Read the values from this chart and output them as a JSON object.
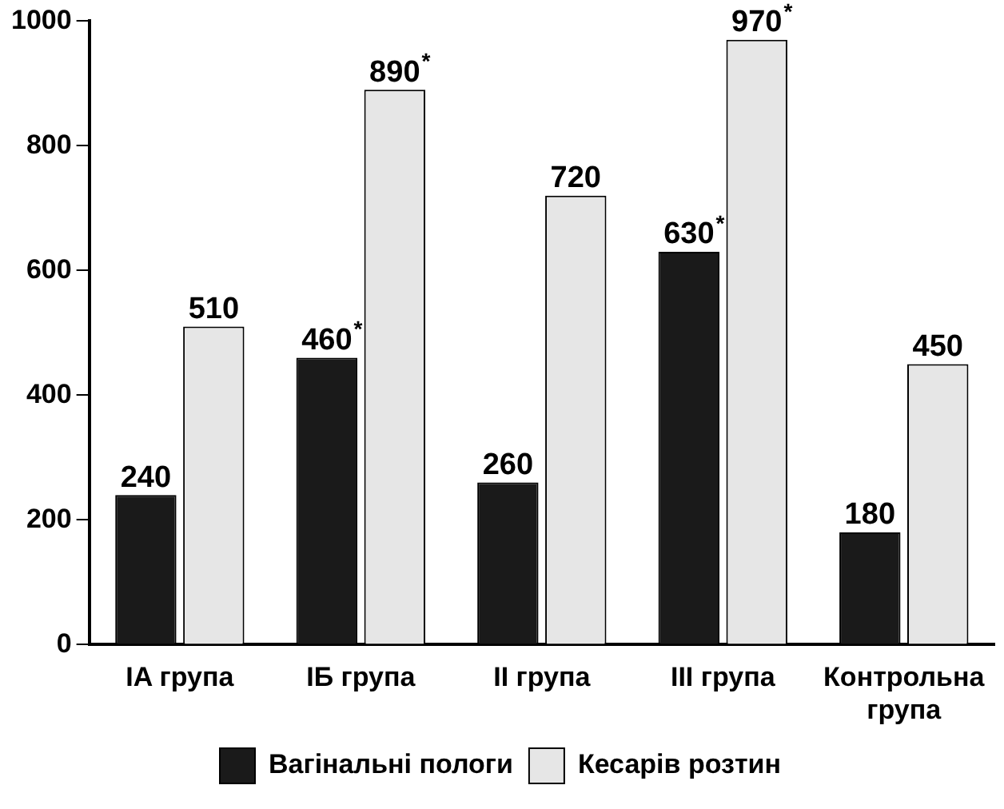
{
  "chart_data": {
    "type": "bar",
    "categories": [
      "IA група",
      "IБ група",
      "II група",
      "III група",
      "Контрольна група"
    ],
    "series": [
      {
        "name": "Вагінальні пологи",
        "color": "#1a1a1a",
        "values": [
          240,
          460,
          260,
          630,
          180
        ],
        "value_labels": [
          "240",
          "460$^{*}$",
          "260",
          "630$^{*}$",
          "180"
        ]
      },
      {
        "name": "Кесарів розтин",
        "color": "#e6e6e6",
        "values": [
          510,
          890,
          720,
          970,
          450
        ],
        "value_labels": [
          "510",
          "890$^{*}$",
          "720",
          "970$^{*}$",
          "450"
        ]
      }
    ],
    "ylim": [
      0,
      1000
    ],
    "yticks": [
      0,
      200,
      400,
      600,
      800,
      1000
    ],
    "grid": false,
    "legend": "bottom"
  }
}
